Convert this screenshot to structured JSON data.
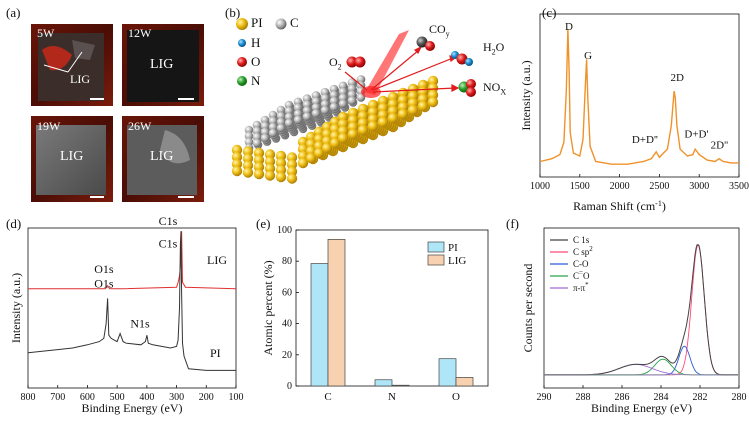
{
  "panels": {
    "a": {
      "label": "(a)",
      "photos": [
        {
          "power": "5W",
          "tag": "LIG"
        },
        {
          "power": "12W",
          "tag": "LIG"
        },
        {
          "power": "19W",
          "tag": "LIG"
        },
        {
          "power": "26W",
          "tag": "LIG"
        }
      ]
    },
    "b": {
      "label": "(b)",
      "legend": [
        {
          "name": "PI",
          "color": "#e0b000"
        },
        {
          "name": "C",
          "color": "#777777"
        },
        {
          "name": "H",
          "color": "#1a90d0"
        },
        {
          "name": "O",
          "color": "#e01c1c"
        },
        {
          "name": "N",
          "color": "#2aa02a"
        }
      ],
      "molecules": {
        "o2": "O",
        "o2_sub": "2",
        "coy": "CO",
        "coy_sub": "y",
        "h2o_a": "H",
        "h2o_sub": "2",
        "h2o_b": "O",
        "nox": "NO",
        "nox_sub": "X"
      }
    }
  },
  "chart_data": [
    {
      "id": "c",
      "panel_label": "(c)",
      "type": "line",
      "xlabel": "Raman Shift (cm",
      "xlabel_sup": "-1",
      "xlabel_end": ")",
      "ylabel": "Intensity (a.u.)",
      "xlim": [
        1000,
        3500
      ],
      "xticks": [
        "1000",
        "1500",
        "2000",
        "2500",
        "3000",
        "3500"
      ],
      "color": "#f0922a",
      "peaks_annot": [
        "D",
        "G",
        "2D",
        "D+D''",
        "D+D'",
        "2D''"
      ],
      "x": [
        1000,
        1150,
        1250,
        1300,
        1330,
        1350,
        1365,
        1380,
        1420,
        1500,
        1540,
        1570,
        1585,
        1600,
        1630,
        1700,
        1900,
        2100,
        2300,
        2400,
        2460,
        2500,
        2600,
        2650,
        2685,
        2700,
        2720,
        2760,
        2850,
        2920,
        2950,
        3000,
        3100,
        3200,
        3250,
        3300,
        3400,
        3500
      ],
      "y": [
        0.04,
        0.06,
        0.09,
        0.18,
        0.55,
        1.0,
        0.7,
        0.25,
        0.1,
        0.08,
        0.2,
        0.6,
        0.78,
        0.5,
        0.15,
        0.04,
        0.02,
        0.02,
        0.04,
        0.06,
        0.11,
        0.07,
        0.13,
        0.3,
        0.55,
        0.5,
        0.3,
        0.13,
        0.08,
        0.09,
        0.13,
        0.09,
        0.05,
        0.04,
        0.06,
        0.04,
        0.03,
        0.03
      ]
    },
    {
      "id": "d",
      "panel_label": "(d)",
      "type": "line",
      "xlabel": "Binding Energy (eV)",
      "ylabel": "Intensity (a.u.)",
      "xlim": [
        800,
        100
      ],
      "xticks": [
        "800",
        "700",
        "600",
        "500",
        "400",
        "300",
        "200",
        "100"
      ],
      "annotations": [
        {
          "text": "O1s",
          "series": "LIG"
        },
        {
          "text": "C1s",
          "series": "LIG"
        },
        {
          "text": "O1s",
          "series": "PI"
        },
        {
          "text": "N1s",
          "series": "PI"
        },
        {
          "text": "C1s",
          "series": "PI"
        }
      ],
      "series": [
        {
          "name": "LIG",
          "color": "#e03030",
          "x": [
            800,
            600,
            540,
            532,
            525,
            480,
            300,
            295,
            290,
            285,
            283,
            280,
            270,
            100
          ],
          "y": [
            0.62,
            0.62,
            0.62,
            0.64,
            0.62,
            0.62,
            0.63,
            0.66,
            0.7,
            0.8,
            0.98,
            0.66,
            0.63,
            0.62
          ]
        },
        {
          "name": "PI",
          "color": "#333333",
          "x": [
            800,
            700,
            650,
            600,
            560,
            545,
            537,
            532,
            528,
            520,
            500,
            490,
            480,
            470,
            420,
            405,
            400,
            395,
            380,
            320,
            300,
            295,
            290,
            287,
            285,
            283,
            280,
            275,
            260,
            200,
            150,
            100
          ],
          "y": [
            0.22,
            0.24,
            0.25,
            0.27,
            0.29,
            0.31,
            0.4,
            0.56,
            0.33,
            0.31,
            0.29,
            0.34,
            0.29,
            0.28,
            0.27,
            0.29,
            0.33,
            0.28,
            0.27,
            0.25,
            0.26,
            0.3,
            0.5,
            0.9,
            0.98,
            0.6,
            0.28,
            0.2,
            0.12,
            0.11,
            0.11,
            0.11
          ]
        }
      ],
      "legend_labels": [
        "LIG",
        "PI"
      ]
    },
    {
      "id": "e",
      "panel_label": "(e)",
      "type": "bar",
      "ylabel": "Atomic percent (%)",
      "categories": [
        "C",
        "N",
        "O"
      ],
      "ylim": [
        0,
        100
      ],
      "yticks": [
        "0",
        "20",
        "40",
        "60",
        "80",
        "100"
      ],
      "legend_position": "top-right",
      "series": [
        {
          "name": "PI",
          "color": "#aee6f7",
          "values": [
            78.5,
            4,
            17.5
          ]
        },
        {
          "name": "LIG",
          "color": "#f8d2b0",
          "values": [
            94,
            0.5,
            5.5
          ]
        }
      ]
    },
    {
      "id": "f",
      "panel_label": "(f)",
      "type": "line",
      "xlabel": "Binding Energy (eV)",
      "ylabel": "Counts per second",
      "xlim": [
        290,
        280
      ],
      "xticks": [
        "290",
        "288",
        "286",
        "284",
        "282",
        "280"
      ],
      "legend_position": "top-left",
      "series": [
        {
          "name": "C 1s",
          "color": "#444444"
        },
        {
          "name": "C sp",
          "sup": "2",
          "color": "#ff4a7a"
        },
        {
          "name": "C-O",
          "color": "#2a5ad8"
        },
        {
          "name": "C",
          "sup": "=",
          "name_end": "O",
          "color": "#2aa34a"
        },
        {
          "name": "π-π",
          "sup": "*",
          "color": "#a06ad8"
        }
      ],
      "components": [
        {
          "center": 282.1,
          "width": 0.45,
          "height": 1.0
        },
        {
          "center": 282.8,
          "width": 0.4,
          "height": 0.22
        },
        {
          "center": 283.9,
          "width": 0.6,
          "height": 0.12
        },
        {
          "center": 285.3,
          "width": 1.2,
          "height": 0.08
        }
      ]
    }
  ]
}
